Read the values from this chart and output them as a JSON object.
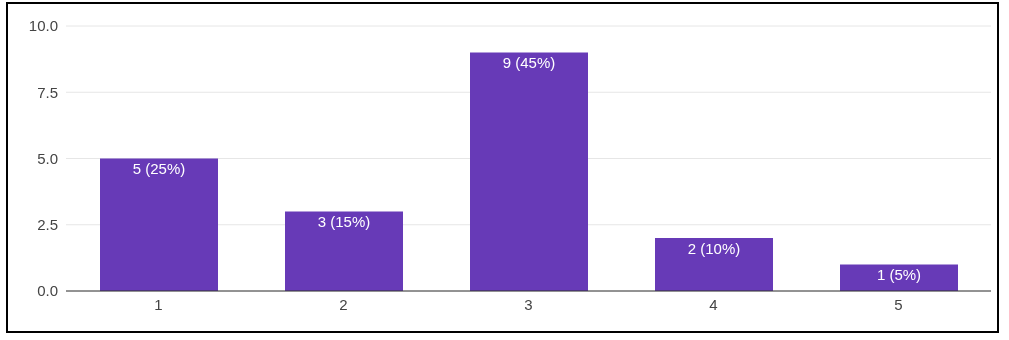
{
  "chart_data": {
    "type": "bar",
    "categories": [
      "1",
      "2",
      "3",
      "4",
      "5"
    ],
    "values": [
      5,
      3,
      9,
      2,
      1
    ],
    "color": "#673ab7",
    "value_labels": [
      "5 (25%)",
      "3 (15%)",
      "9 (45%)",
      "2 (10%)",
      "1 (5%)"
    ],
    "ylim": [
      0,
      10
    ],
    "yticks": [
      {
        "value": 0,
        "label": "0.0"
      },
      {
        "value": 2.5,
        "label": "2.5"
      },
      {
        "value": 5,
        "label": "5.0"
      },
      {
        "value": 7.5,
        "label": "7.5"
      },
      {
        "value": 10,
        "label": "10.0"
      }
    ],
    "grid": "y"
  }
}
